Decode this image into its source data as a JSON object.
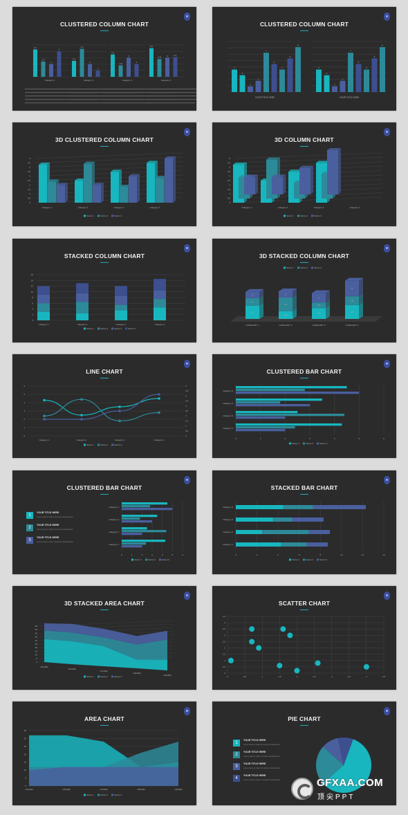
{
  "slides": [
    {
      "title": "CLUSTERED COLUMN CHART"
    },
    {
      "title": "CLUSTERED COLUMN CHART"
    },
    {
      "title": "3D CLUSTERED COLUMN CHART"
    },
    {
      "title": "3D COLUMN CHART"
    },
    {
      "title": "STACKED COLUMN CHART"
    },
    {
      "title": "3D STACKED COLUMN CHART"
    },
    {
      "title": "LINE CHART"
    },
    {
      "title": "CLUSTERED BAR CHART"
    },
    {
      "title": "CLUSTERED BAR CHART"
    },
    {
      "title": "STACKED BAR CHART"
    },
    {
      "title": "3D STACKED AREA CHART"
    },
    {
      "title": "SCATTER CHART"
    },
    {
      "title": "AREA CHART"
    },
    {
      "title": "PIE CHART"
    }
  ],
  "colors": {
    "s1": "#18b6bf",
    "s2": "#2d8a99",
    "s3": "#4a5f9e",
    "s4": "#3d4f8f",
    "grid": "#4a4a4a"
  },
  "list_items": {
    "title": "YOUR TITLE HERE",
    "sub": "Lorem ipsum dolor sit amet consectetur"
  },
  "watermark": {
    "brand": "GFXAA.COM",
    "sub": "顶尖PPT"
  },
  "chart_data": [
    {
      "type": "bar",
      "title": "CLUSTERED COLUMN CHART",
      "categories": [
        "Category 1",
        "Category 2",
        "Category 3",
        "Category 4"
      ],
      "series": [
        {
          "name": "Series 1",
          "values": [
            4.3,
            2.5,
            3.5,
            4.5
          ]
        },
        {
          "name": "Series 2",
          "values": [
            2.4,
            4.4,
            1.8,
            2.8
          ]
        },
        {
          "name": "Series 3",
          "values": [
            2,
            2,
            3,
            3
          ]
        },
        {
          "name": "Series 4",
          "values": [
            4,
            1,
            2,
            3.1
          ]
        }
      ],
      "ylim": [
        0,
        5
      ]
    },
    {
      "type": "bar",
      "title": "CLUSTERED COLUMN CHART",
      "xlabel": "YOUR TITLE HERE",
      "values": [
        4,
        3,
        1,
        2,
        7,
        5,
        4,
        6,
        8
      ]
    },
    {
      "type": "bar",
      "title": "3D CLUSTERED COLUMN CHART",
      "categories": [
        "Category 1",
        "Category 2",
        "Category 3",
        "Category 4"
      ],
      "series": [
        {
          "name": "Series 1",
          "values": [
            4.3,
            2.5,
            3.5,
            4.5
          ]
        },
        {
          "name": "Series 2",
          "values": [
            2.4,
            4.4,
            1.8,
            2.8
          ]
        },
        {
          "name": "Series 3",
          "values": [
            2,
            2,
            3,
            5
          ]
        }
      ],
      "ylim": [
        0,
        5
      ]
    },
    {
      "type": "bar",
      "title": "3D COLUMN CHART",
      "categories": [
        "Category 1",
        "Category 2",
        "Category 3",
        "Category 4"
      ],
      "series": [
        {
          "name": "Series 1",
          "values": [
            4.3,
            2.5,
            3.5,
            4.5
          ]
        },
        {
          "name": "Series 2",
          "values": [
            2.4,
            4.4,
            1.8,
            2.8
          ]
        },
        {
          "name": "Series 3",
          "values": [
            2,
            2,
            3,
            5
          ]
        }
      ],
      "ylim": [
        0,
        5
      ]
    },
    {
      "type": "bar",
      "title": "STACKED COLUMN CHART",
      "categories": [
        "Category 1",
        "Category 2",
        "Category 3",
        "Category 4"
      ],
      "series": [
        {
          "name": "Series 1",
          "values": [
            3,
            2.5,
            3.5,
            4.5
          ]
        },
        {
          "name": "Series 2",
          "values": [
            3,
            4,
            2,
            3
          ]
        },
        {
          "name": "Series 3",
          "values": [
            3,
            3,
            3,
            3
          ]
        },
        {
          "name": "Series 4",
          "values": [
            3,
            3.5,
            3.5,
            4
          ]
        }
      ],
      "ylim": [
        0,
        16
      ]
    },
    {
      "type": "bar",
      "title": "3D STACKED COLUMN CHART",
      "categories": [
        "CATEGORY 1",
        "CATEGORY 2",
        "CATEGORY 3",
        "CATEGORY 4"
      ],
      "series": [
        {
          "name": "Series 1",
          "values": [
            4.3,
            2.5,
            3.5,
            4.5
          ]
        },
        {
          "name": "Series 2",
          "values": [
            2.4,
            4.4,
            1.8,
            2.8
          ]
        },
        {
          "name": "Series 3",
          "values": [
            2,
            2,
            3,
            5
          ]
        }
      ]
    },
    {
      "type": "line",
      "title": "LINE CHART",
      "categories": [
        "Category 1",
        "Category 2",
        "Category 3",
        "Category 4"
      ],
      "series": [
        {
          "name": "Series 1",
          "values": [
            4.3,
            2.5,
            3.5,
            4.5
          ]
        },
        {
          "name": "Series 2",
          "values": [
            2.4,
            4.4,
            1.8,
            2.8
          ]
        },
        {
          "name": "Series 3",
          "values": [
            2,
            2,
            3,
            5
          ]
        }
      ],
      "ylim": [
        0,
        6
      ]
    },
    {
      "type": "bar",
      "title": "CLUSTERED BAR CHART",
      "categories": [
        "Category 1",
        "Category 2",
        "Category 3",
        "Category 4"
      ],
      "series": [
        {
          "name": "Series 1",
          "values": [
            4.3,
            2.5,
            3.5,
            4.5
          ]
        },
        {
          "name": "Series 2",
          "values": [
            2.4,
            4.4,
            1.8,
            2.8
          ]
        },
        {
          "name": "Series 3",
          "values": [
            2,
            2,
            3,
            5
          ]
        }
      ],
      "xlim": [
        0,
        6
      ]
    },
    {
      "type": "bar",
      "title": "CLUSTERED BAR CHART",
      "categories": [
        "Category 1",
        "Category 2",
        "Category 3",
        "Category 4"
      ],
      "series": [
        {
          "name": "Series 1",
          "values": [
            4.3,
            2.5,
            3.5,
            4.5
          ]
        },
        {
          "name": "Series 2",
          "values": [
            2.4,
            4.4,
            1.8,
            2.8
          ]
        },
        {
          "name": "Series 3",
          "values": [
            2,
            2,
            3,
            5
          ]
        }
      ],
      "xlim": [
        0,
        6
      ]
    },
    {
      "type": "bar",
      "title": "STACKED BAR CHART",
      "categories": [
        "Category 1",
        "Category 2",
        "Category 3",
        "Category 4"
      ],
      "series": [
        {
          "name": "Series 1",
          "values": [
            4.3,
            2.5,
            3.5,
            4.5
          ]
        },
        {
          "name": "Series 2",
          "values": [
            2.4,
            4.4,
            1.8,
            2.8
          ]
        },
        {
          "name": "Series 3",
          "values": [
            2,
            2,
            3,
            5
          ]
        }
      ],
      "xlim": [
        0,
        14
      ]
    },
    {
      "type": "area",
      "title": "3D STACKED AREA CHART",
      "x": [
        "1/5/2002",
        "1/6/2002",
        "1/7/2002",
        "1/8/2002",
        "1/9/2002"
      ],
      "series": [
        {
          "name": "Series 1",
          "values": [
            32,
            32,
            28,
            12,
            15
          ]
        },
        {
          "name": "Series 2",
          "values": [
            12,
            12,
            12,
            21,
            28
          ]
        },
        {
          "name": "Series 3",
          "values": [
            10,
            12,
            12,
            12,
            12
          ]
        }
      ],
      "ylim": [
        0,
        50
      ]
    },
    {
      "type": "scatter",
      "title": "SCATTER CHART",
      "points": [
        [
          0.1,
          1
        ],
        [
          0.7,
          3.5
        ],
        [
          0.7,
          2.5
        ],
        [
          0.9,
          2
        ],
        [
          1.5,
          0.6
        ],
        [
          1.6,
          3.5
        ],
        [
          1.8,
          3
        ],
        [
          2,
          0.2
        ],
        [
          2.6,
          0.8
        ],
        [
          4,
          0.5
        ]
      ],
      "xlim": [
        0,
        4.5
      ],
      "ylim": [
        0,
        4.5
      ]
    },
    {
      "type": "area",
      "title": "AREA CHART",
      "x": [
        "1/5/2002",
        "1/6/2002",
        "1/7/2002",
        "1/8/2002",
        "1/9/2002"
      ],
      "series": [
        {
          "name": "Series 1",
          "values": [
            32,
            32,
            28,
            12,
            15
          ]
        },
        {
          "name": "Series 2",
          "values": [
            12,
            12,
            12,
            21,
            28
          ]
        },
        {
          "name": "Series 3",
          "values": [
            10,
            12,
            12,
            12,
            12
          ]
        }
      ],
      "ylim": [
        0,
        35
      ]
    },
    {
      "type": "pie",
      "title": "PIE CHART",
      "values": [
        58,
        23,
        10,
        9
      ]
    }
  ]
}
